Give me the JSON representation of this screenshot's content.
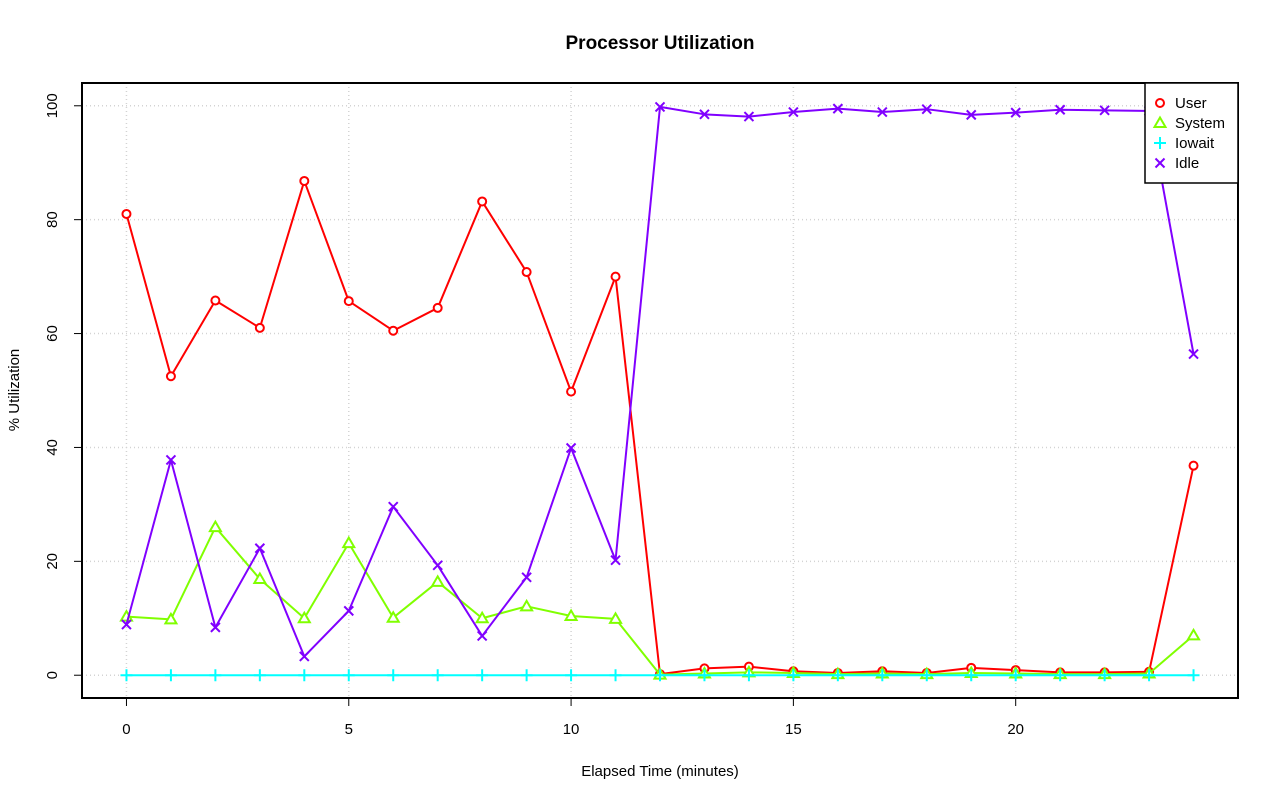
{
  "chart_data": {
    "type": "line",
    "title": "Processor Utilization",
    "xlabel": "Elapsed Time (minutes)",
    "ylabel": "% Utilization",
    "xlim": [
      -1,
      25
    ],
    "ylim": [
      -4,
      104
    ],
    "xticks": [
      0,
      5,
      10,
      15,
      20
    ],
    "yticks": [
      0,
      20,
      40,
      60,
      80,
      100
    ],
    "grid": true,
    "legend_position": "top-right",
    "x": [
      0,
      1,
      2,
      3,
      4,
      5,
      6,
      7,
      8,
      9,
      10,
      11,
      12,
      13,
      14,
      15,
      16,
      17,
      18,
      19,
      20,
      21,
      22,
      23,
      24
    ],
    "series": [
      {
        "name": "User",
        "color": "#ff0000",
        "marker": "circle",
        "values": [
          81.0,
          52.5,
          65.8,
          61.0,
          86.8,
          65.7,
          60.5,
          64.5,
          83.2,
          70.8,
          49.8,
          70.0,
          0.2,
          1.2,
          1.5,
          0.7,
          0.4,
          0.7,
          0.4,
          1.3,
          0.9,
          0.5,
          0.5,
          0.6,
          36.8
        ]
      },
      {
        "name": "System",
        "color": "#80ff00",
        "marker": "triangle",
        "values": [
          10.3,
          9.8,
          26.0,
          16.9,
          10.0,
          23.2,
          10.1,
          16.4,
          10.0,
          12.1,
          10.4,
          9.9,
          0.1,
          0.3,
          0.5,
          0.4,
          0.2,
          0.3,
          0.2,
          0.4,
          0.3,
          0.2,
          0.2,
          0.3,
          7.0
        ]
      },
      {
        "name": "Iowait",
        "color": "#00ffff",
        "marker": "plus",
        "values": [
          0,
          0,
          0,
          0,
          0,
          0,
          0,
          0,
          0,
          0,
          0,
          0,
          0,
          0,
          0,
          0,
          0,
          0,
          0,
          0,
          0,
          0,
          0,
          0,
          0
        ]
      },
      {
        "name": "Idle",
        "color": "#8000ff",
        "marker": "cross",
        "values": [
          8.9,
          37.8,
          8.4,
          22.3,
          3.3,
          11.3,
          29.6,
          19.3,
          6.9,
          17.2,
          39.9,
          20.2,
          99.8,
          98.5,
          98.1,
          98.9,
          99.5,
          98.9,
          99.4,
          98.4,
          98.8,
          99.3,
          99.2,
          99.1,
          56.4
        ]
      }
    ]
  }
}
